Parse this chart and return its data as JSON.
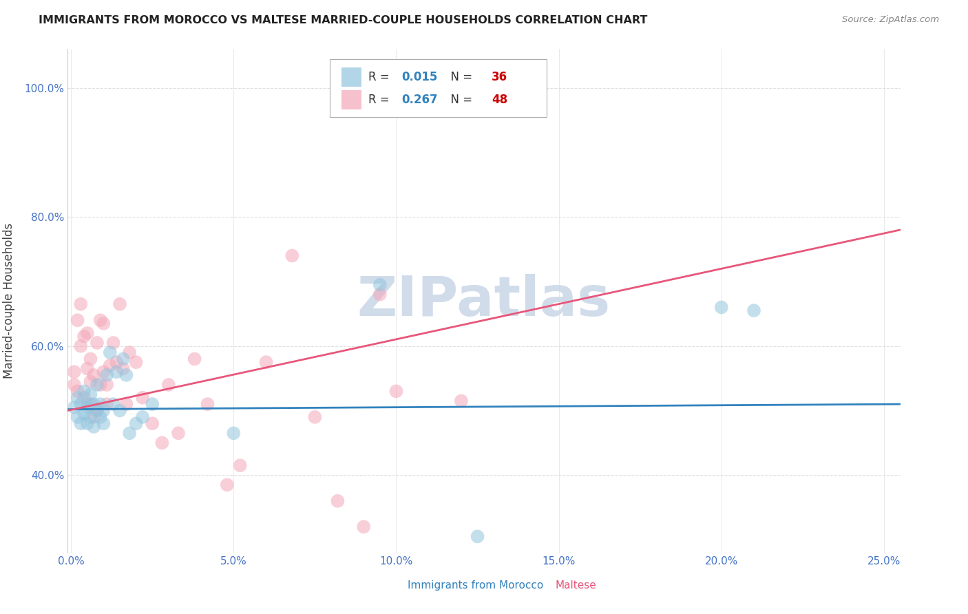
{
  "title": "IMMIGRANTS FROM MOROCCO VS MALTESE MARRIED-COUPLE HOUSEHOLDS CORRELATION CHART",
  "source": "Source: ZipAtlas.com",
  "ylabel": "Married-couple Households",
  "x_label_blue": "Immigrants from Morocco",
  "x_label_pink": "Maltese",
  "xlim": [
    -0.001,
    0.255
  ],
  "ylim": [
    0.28,
    1.06
  ],
  "xticks": [
    0.0,
    0.05,
    0.1,
    0.15,
    0.2,
    0.25
  ],
  "xtick_labels": [
    "0.0%",
    "5.0%",
    "10.0%",
    "15.0%",
    "20.0%",
    "25.0%"
  ],
  "yticks": [
    0.4,
    0.6,
    0.8,
    1.0
  ],
  "ytick_labels": [
    "40.0%",
    "60.0%",
    "80.0%",
    "100.0%"
  ],
  "blue_R": 0.015,
  "blue_N": 36,
  "pink_R": 0.267,
  "pink_N": 48,
  "blue_color": "#92c5de",
  "pink_color": "#f4a6b8",
  "blue_line_color": "#3182bd",
  "pink_line_color": "#e8567a",
  "title_color": "#222222",
  "axis_tick_color": "#4472c4",
  "source_color": "#888888",
  "watermark": "ZIPatlas",
  "watermark_color": "#ccd9e8",
  "blue_scatter_x": [
    0.001,
    0.002,
    0.002,
    0.003,
    0.003,
    0.004,
    0.004,
    0.005,
    0.005,
    0.005,
    0.006,
    0.006,
    0.007,
    0.007,
    0.008,
    0.008,
    0.009,
    0.009,
    0.01,
    0.01,
    0.011,
    0.012,
    0.013,
    0.014,
    0.015,
    0.016,
    0.017,
    0.018,
    0.02,
    0.022,
    0.025,
    0.05,
    0.095,
    0.125,
    0.2,
    0.21
  ],
  "blue_scatter_y": [
    0.505,
    0.49,
    0.52,
    0.48,
    0.51,
    0.495,
    0.53,
    0.505,
    0.48,
    0.51,
    0.49,
    0.525,
    0.51,
    0.475,
    0.5,
    0.54,
    0.51,
    0.49,
    0.5,
    0.48,
    0.555,
    0.59,
    0.51,
    0.56,
    0.5,
    0.58,
    0.555,
    0.465,
    0.48,
    0.49,
    0.51,
    0.465,
    0.695,
    0.305,
    0.66,
    0.655
  ],
  "pink_scatter_x": [
    0.001,
    0.001,
    0.002,
    0.002,
    0.003,
    0.003,
    0.004,
    0.004,
    0.005,
    0.005,
    0.006,
    0.006,
    0.006,
    0.007,
    0.007,
    0.008,
    0.008,
    0.009,
    0.009,
    0.01,
    0.01,
    0.011,
    0.011,
    0.012,
    0.013,
    0.014,
    0.015,
    0.016,
    0.017,
    0.018,
    0.02,
    0.022,
    0.025,
    0.028,
    0.03,
    0.033,
    0.038,
    0.042,
    0.048,
    0.052,
    0.06,
    0.068,
    0.075,
    0.082,
    0.09,
    0.095,
    0.1,
    0.12
  ],
  "pink_scatter_y": [
    0.56,
    0.54,
    0.53,
    0.64,
    0.6,
    0.665,
    0.52,
    0.615,
    0.565,
    0.62,
    0.58,
    0.51,
    0.545,
    0.49,
    0.555,
    0.5,
    0.605,
    0.54,
    0.64,
    0.56,
    0.635,
    0.51,
    0.54,
    0.57,
    0.605,
    0.575,
    0.665,
    0.565,
    0.51,
    0.59,
    0.575,
    0.52,
    0.48,
    0.45,
    0.54,
    0.465,
    0.58,
    0.51,
    0.385,
    0.415,
    0.575,
    0.74,
    0.49,
    0.36,
    0.32,
    0.68,
    0.53,
    0.515
  ],
  "blue_line_y_at_0": 0.502,
  "blue_line_y_at_25": 0.51,
  "pink_line_y_at_0": 0.5,
  "pink_line_y_at_25": 0.78,
  "background_color": "#ffffff",
  "grid_color": "#e0e0e0"
}
